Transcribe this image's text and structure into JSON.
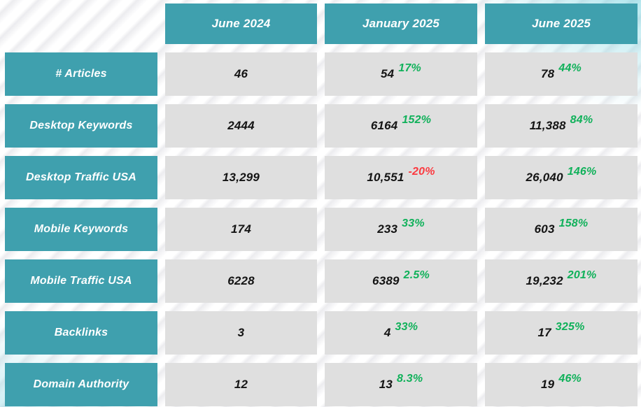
{
  "theme": {
    "header_bg": "#3FA0AE",
    "header_text": "#FFFFFF",
    "cell_bg": "#DFDFDF",
    "value_text": "#141414",
    "positive": "#10B15A",
    "negative": "#FB3A40"
  },
  "chart_data": {
    "type": "table",
    "columns": [
      "June 2024",
      "January 2025",
      "June 2025"
    ],
    "rows": [
      {
        "label": "# Articles",
        "cells": [
          {
            "value": "46"
          },
          {
            "value": "54",
            "change": "17%",
            "direction": "up"
          },
          {
            "value": "78",
            "change": "44%",
            "direction": "up"
          }
        ]
      },
      {
        "label": "Desktop Keywords",
        "cells": [
          {
            "value": "2444"
          },
          {
            "value": "6164",
            "change": "152%",
            "direction": "up"
          },
          {
            "value": "11,388",
            "change": "84%",
            "direction": "up"
          }
        ]
      },
      {
        "label": "Desktop Traffic USA",
        "cells": [
          {
            "value": "13,299"
          },
          {
            "value": "10,551",
            "change": "-20%",
            "direction": "down"
          },
          {
            "value": "26,040",
            "change": "146%",
            "direction": "up"
          }
        ]
      },
      {
        "label": "Mobile Keywords",
        "cells": [
          {
            "value": "174"
          },
          {
            "value": "233",
            "change": "33%",
            "direction": "up"
          },
          {
            "value": "603",
            "change": "158%",
            "direction": "up"
          }
        ]
      },
      {
        "label": "Mobile Traffic USA",
        "cells": [
          {
            "value": "6228"
          },
          {
            "value": "6389",
            "change": "2.5%",
            "direction": "up"
          },
          {
            "value": "19,232",
            "change": "201%",
            "direction": "up"
          }
        ]
      },
      {
        "label": "Backlinks",
        "cells": [
          {
            "value": "3"
          },
          {
            "value": "4",
            "change": "33%",
            "direction": "up"
          },
          {
            "value": "17",
            "change": "325%",
            "direction": "up"
          }
        ]
      },
      {
        "label": "Domain Authority",
        "cells": [
          {
            "value": "12"
          },
          {
            "value": "13",
            "change": "8.3%",
            "direction": "up"
          },
          {
            "value": "19",
            "change": "46%",
            "direction": "up"
          }
        ]
      }
    ]
  }
}
